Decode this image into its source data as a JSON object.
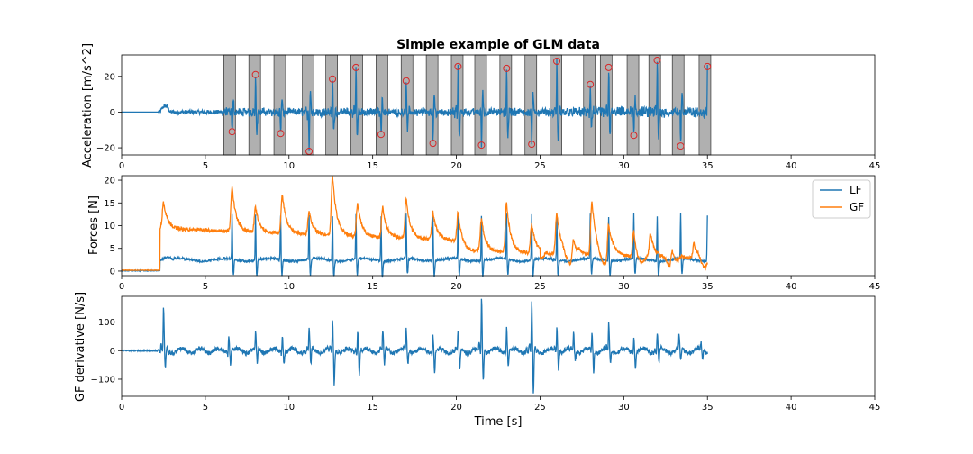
{
  "chart_data": [
    {
      "type": "line",
      "title": "Simple example of GLM data",
      "xlabel": "",
      "ylabel": "Acceleration [m/s^2]",
      "xlim": [
        0,
        45
      ],
      "ylim": [
        -24,
        32
      ],
      "xticks": [
        0,
        5,
        10,
        15,
        20,
        25,
        30,
        35,
        40,
        45
      ],
      "yticks": [
        -20,
        0,
        20
      ],
      "shaded_intervals": [
        [
          6.1,
          6.8
        ],
        [
          7.6,
          8.3
        ],
        [
          9.1,
          9.8
        ],
        [
          10.8,
          11.5
        ],
        [
          12.2,
          12.9
        ],
        [
          13.7,
          14.4
        ],
        [
          15.2,
          15.9
        ],
        [
          16.7,
          17.4
        ],
        [
          18.2,
          18.9
        ],
        [
          19.7,
          20.4
        ],
        [
          21.1,
          21.8
        ],
        [
          22.6,
          23.3
        ],
        [
          24.1,
          24.8
        ],
        [
          25.6,
          26.3
        ],
        [
          27.6,
          28.3
        ],
        [
          28.6,
          29.3
        ],
        [
          30.2,
          30.9
        ],
        [
          31.5,
          32.2
        ],
        [
          32.9,
          33.6
        ],
        [
          34.5,
          35.2
        ]
      ],
      "marked_peaks": [
        {
          "x": 6.6,
          "y": -11
        },
        {
          "x": 8.0,
          "y": 21
        },
        {
          "x": 9.5,
          "y": -12
        },
        {
          "x": 11.2,
          "y": -22
        },
        {
          "x": 12.6,
          "y": 18.5
        },
        {
          "x": 14.0,
          "y": 25
        },
        {
          "x": 15.5,
          "y": -12.5
        },
        {
          "x": 17.0,
          "y": 17.5
        },
        {
          "x": 18.6,
          "y": -17.5
        },
        {
          "x": 20.1,
          "y": 25.5
        },
        {
          "x": 21.5,
          "y": -18.5
        },
        {
          "x": 23.0,
          "y": 24.5
        },
        {
          "x": 24.5,
          "y": -18
        },
        {
          "x": 26.0,
          "y": 28.5
        },
        {
          "x": 28.0,
          "y": 15.5
        },
        {
          "x": 29.1,
          "y": 25
        },
        {
          "x": 30.6,
          "y": -13
        },
        {
          "x": 32.0,
          "y": 29
        },
        {
          "x": 33.4,
          "y": -19
        },
        {
          "x": 35.0,
          "y": 25.5
        }
      ],
      "series": [
        {
          "name": "acceleration",
          "color": "#1f77b4",
          "t_end": 35
        }
      ]
    },
    {
      "type": "line",
      "title": "",
      "xlabel": "",
      "ylabel": "Forces [N]",
      "xlim": [
        0,
        45
      ],
      "ylim": [
        -1,
        21
      ],
      "xticks": [
        0,
        5,
        10,
        15,
        20,
        25,
        30,
        35,
        40,
        45
      ],
      "yticks": [
        0,
        5,
        10,
        15,
        20
      ],
      "legend_position": "top-right",
      "series": [
        {
          "name": "LF",
          "color": "#1f77b4",
          "baseline": 2.5,
          "max": 14
        },
        {
          "name": "GF",
          "color": "#ff7f0e",
          "baseline_start": 10,
          "max": 21
        }
      ]
    },
    {
      "type": "line",
      "title": "",
      "xlabel": "Time [s]",
      "ylabel": "GF derivative [N/s]",
      "xlim": [
        0,
        45
      ],
      "ylim": [
        -160,
        190
      ],
      "xticks": [
        0,
        5,
        10,
        15,
        20,
        25,
        30,
        35,
        40,
        45
      ],
      "yticks": [
        -100,
        0,
        100
      ],
      "series": [
        {
          "name": "GF derivative",
          "color": "#1f77b4",
          "max": 180,
          "min": -145
        }
      ]
    }
  ],
  "legend": {
    "lf_label": "LF",
    "gf_label": "GF"
  }
}
